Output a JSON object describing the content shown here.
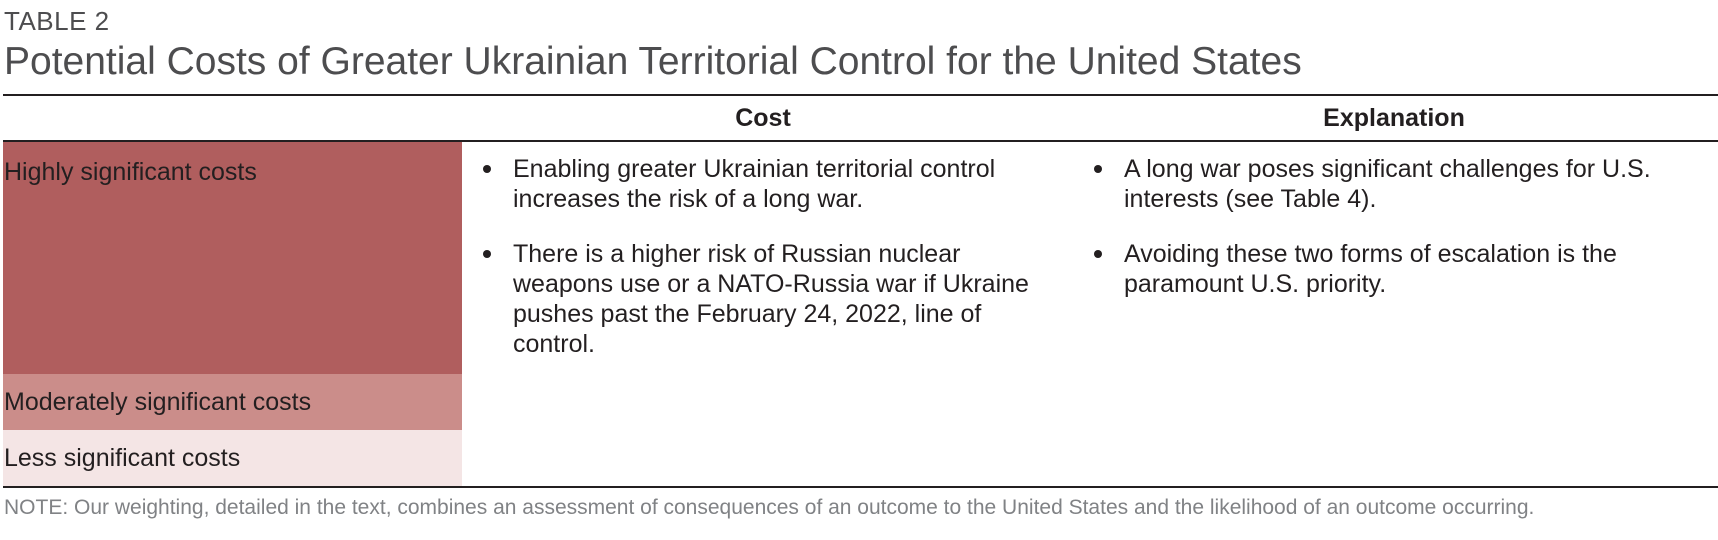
{
  "table_label": "TABLE 2",
  "title": "Potential Costs of Greater Ukrainian Territorial Control for the United States",
  "columns": {
    "cost": "Cost",
    "explanation": "Explanation"
  },
  "legend": {
    "high": {
      "label": "Highly significant  costs",
      "color": "#b05e5e"
    },
    "moderate": {
      "label": "Moderately significant costs",
      "color": "#cb8d8a"
    },
    "low": {
      "label": "Less significant costs",
      "color": "#f4e5e5"
    }
  },
  "rows": [
    {
      "level": "high",
      "cost": [
        "Enabling greater Ukrainian territorial control increases the risk of a long war.",
        "There is a higher risk of Russian nuclear weapons use or a NATO-Russia war if Ukraine pushes past the February 24, 2022, line of control."
      ],
      "explanation": [
        "A long war poses significant challenges for U.S. interests (see Table 4).",
        "Avoiding these two forms of escalation is the paramount U.S. priority."
      ]
    }
  ],
  "note": "NOTE: Our weighting, detailed in the text, combines an assessment of consequences of an outcome to the United States and the likelihood of an outcome occurring."
}
